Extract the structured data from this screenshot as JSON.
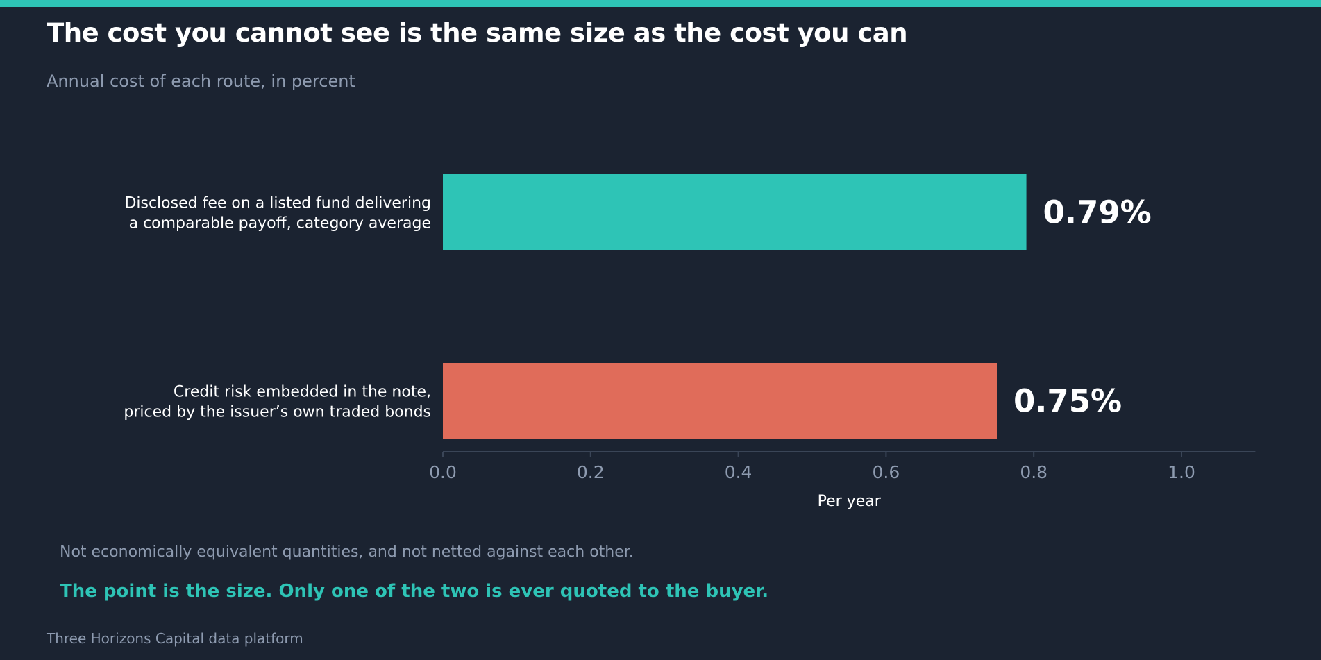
{
  "header": {
    "title": "The cost you cannot see is the same size as the cost you can",
    "subtitle": "Annual cost of each route, in percent"
  },
  "chart_data": {
    "type": "bar",
    "orientation": "horizontal",
    "categories": [
      [
        "Disclosed fee on a listed fund delivering",
        "a comparable payoff, category average"
      ],
      [
        "Credit risk embedded in the note,",
        "priced by the issuer’s own traded bonds"
      ]
    ],
    "values": [
      0.79,
      0.75
    ],
    "value_labels": [
      "0.79%",
      "0.75%"
    ],
    "bar_colors": [
      "#2ec4b6",
      "#e06c5a"
    ],
    "xlabel": "Per year",
    "xlim": [
      0,
      1.1
    ],
    "xticks": [
      0.0,
      0.2,
      0.4,
      0.6,
      0.8,
      1.0
    ],
    "xtick_labels": [
      "0.0",
      "0.2",
      "0.4",
      "0.6",
      "0.8",
      "1.0"
    ],
    "grid": false,
    "legend": "none"
  },
  "footer": {
    "note": "Not economically equivalent quantities, and not netted against each other.",
    "takeaway": "The point is the size. Only one of the two is ever quoted to the buyer.",
    "source": "Three Horizons Capital data platform"
  },
  "colors": {
    "background": "#1b2331",
    "accent": "#2ec4b6",
    "hidden_cost": "#e06c5a",
    "muted_text": "#8e9bb0"
  }
}
